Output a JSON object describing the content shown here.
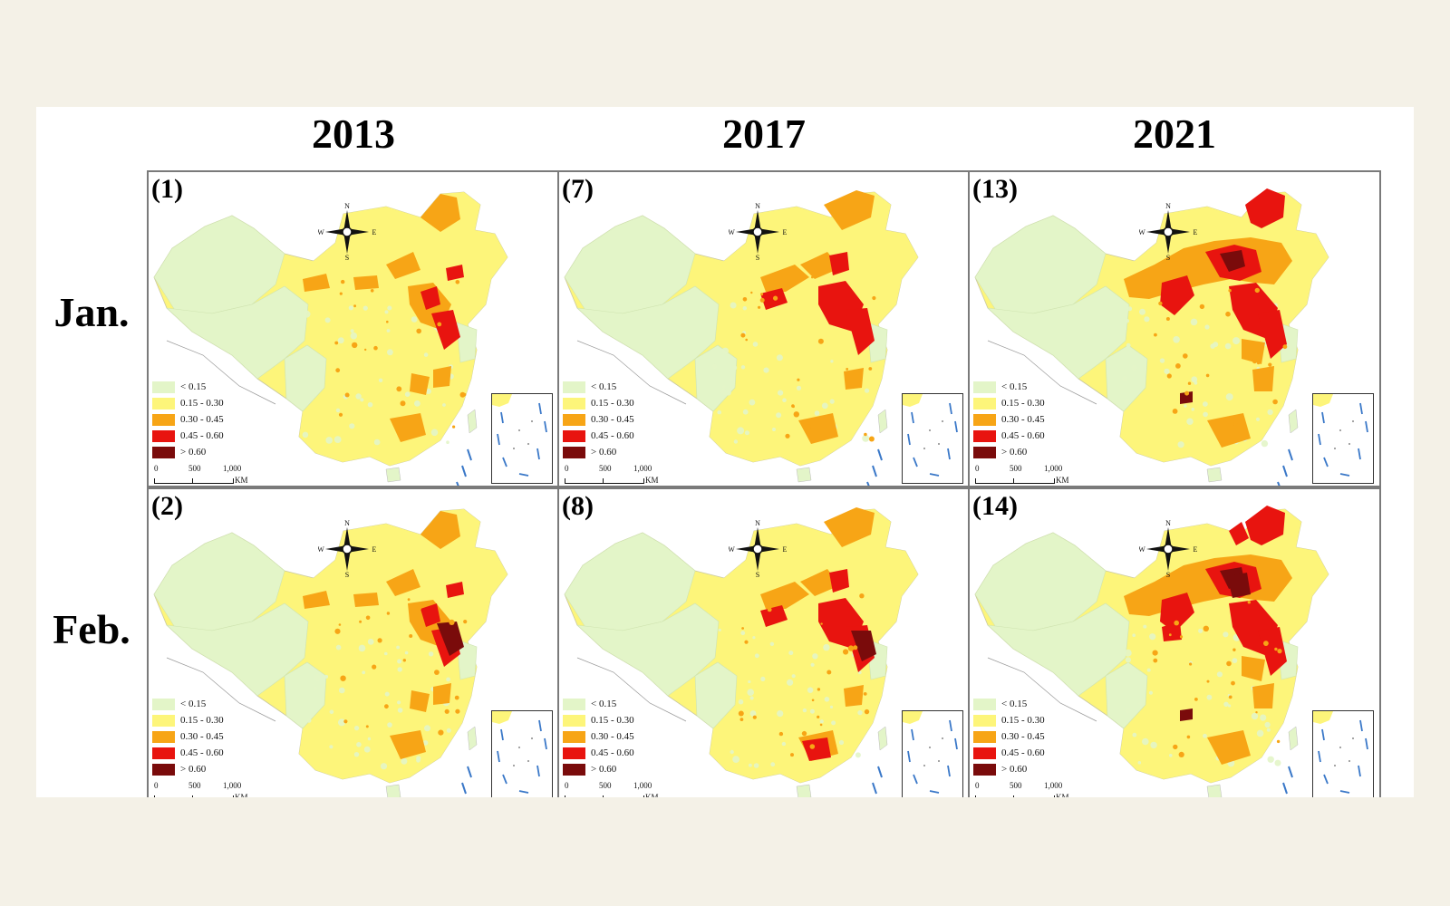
{
  "columns": [
    "2013",
    "2017",
    "2021"
  ],
  "rows": [
    "Jan.",
    "Feb."
  ],
  "panels": [
    {
      "label": "(1)",
      "period": 0
    },
    {
      "label": "(7)",
      "period": 1
    },
    {
      "label": "(13)",
      "period": 2
    },
    {
      "label": "(2)",
      "period": 0
    },
    {
      "label": "(8)",
      "period": 1
    },
    {
      "label": "(14)",
      "period": 2
    }
  ],
  "legend": [
    {
      "label": "< 0.15",
      "color": "#e3f5c8"
    },
    {
      "label": "0.15 - 0.30",
      "color": "#fdf57a"
    },
    {
      "label": "0.30 - 0.45",
      "color": "#f7a516"
    },
    {
      "label": "0.45 - 0.60",
      "color": "#e8140f"
    },
    {
      "label": "> 0.60",
      "color": "#7a0b0b"
    }
  ],
  "scalebar": {
    "ticks": [
      "0",
      "500",
      "1,000"
    ],
    "unit": "KM"
  },
  "compass": {
    "n": "N",
    "s": "S",
    "e": "E",
    "w": "W"
  },
  "colors": {
    "border": "#7a7a7a",
    "background": "#f4f1e7",
    "inset_lines": "#3a78c8"
  }
}
